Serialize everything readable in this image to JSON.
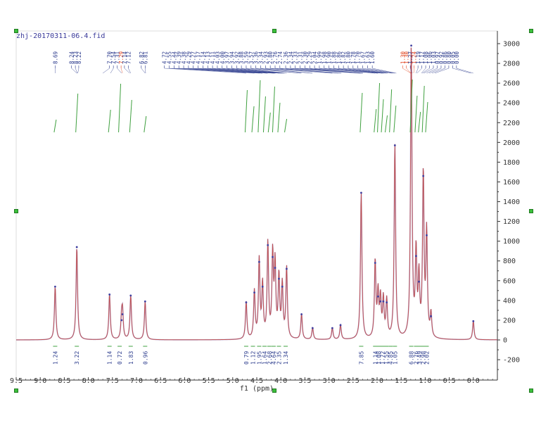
{
  "window": {
    "title": "zhj-20170311-06.4.fid"
  },
  "colors": {
    "trace": "#c05050",
    "grid_frame": "#dddddd",
    "peak_label": "#2b3a8c",
    "solvent_label": "#e0401a",
    "integral": "#3fa03f",
    "integral_label": "#2f3f8f",
    "handle": "#3cbf3c"
  },
  "chart_data": {
    "type": "line",
    "title": "zhj-20170311-06.4.fid",
    "xlabel": "f1 (ppm)",
    "ylabel": "",
    "x_reversed": true,
    "xlim": [
      9.5,
      -0.5
    ],
    "ylim": [
      -300,
      3100
    ],
    "x_ticks": [
      "9.5",
      "9.0",
      "8.5",
      "8.0",
      "7.5",
      "7.0",
      "6.5",
      "6.0",
      "5.5",
      "5.0",
      "4.5",
      "4.0",
      "3.5",
      "3.0",
      "2.5",
      "2.0",
      "1.5",
      "1.0",
      "0.5",
      "0.0"
    ],
    "y_ticks": [
      "3000",
      "2800",
      "2600",
      "2400",
      "2200",
      "2000",
      "1800",
      "1600",
      "1400",
      "1200",
      "1000",
      "800",
      "600",
      "400",
      "200",
      "0",
      "-200"
    ],
    "peaks": [
      {
        "x": 8.69,
        "y": 540
      },
      {
        "x": 8.24,
        "y": 940
      },
      {
        "x": 7.56,
        "y": 460
      },
      {
        "x": 7.31,
        "y": 200
      },
      {
        "x": 7.29,
        "y": 260
      },
      {
        "x": 7.12,
        "y": 450
      },
      {
        "x": 6.82,
        "y": 390
      },
      {
        "x": 4.72,
        "y": 380
      },
      {
        "x": 4.55,
        "y": 480
      },
      {
        "x": 4.45,
        "y": 790
      },
      {
        "x": 4.38,
        "y": 540
      },
      {
        "x": 4.27,
        "y": 960
      },
      {
        "x": 4.17,
        "y": 840
      },
      {
        "x": 4.12,
        "y": 730
      },
      {
        "x": 4.04,
        "y": 620
      },
      {
        "x": 3.97,
        "y": 540
      },
      {
        "x": 3.88,
        "y": 720
      },
      {
        "x": 3.57,
        "y": 260
      },
      {
        "x": 3.34,
        "y": 120
      },
      {
        "x": 2.93,
        "y": 120
      },
      {
        "x": 2.76,
        "y": 150
      },
      {
        "x": 2.33,
        "y": 1490
      },
      {
        "x": 2.04,
        "y": 780
      },
      {
        "x": 1.98,
        "y": 440
      },
      {
        "x": 1.93,
        "y": 390
      },
      {
        "x": 1.87,
        "y": 390
      },
      {
        "x": 1.8,
        "y": 380
      },
      {
        "x": 1.63,
        "y": 1970
      },
      {
        "x": 1.29,
        "y": 2980
      },
      {
        "x": 1.19,
        "y": 850
      },
      {
        "x": 1.13,
        "y": 590
      },
      {
        "x": 1.04,
        "y": 1660
      },
      {
        "x": 0.97,
        "y": 1060
      },
      {
        "x": 0.88,
        "y": 240
      },
      {
        "x": 0.0,
        "y": 190
      }
    ],
    "peak_labels": [
      {
        "text": "8.69",
        "x": 8.69,
        "solvent": false
      },
      {
        "text": "8.24",
        "x": 8.35,
        "solvent": false
      },
      {
        "text": "8.23",
        "x": 8.27,
        "solvent": false
      },
      {
        "text": "8.22",
        "x": 8.2,
        "solvent": false
      },
      {
        "text": "7.70",
        "x": 7.56,
        "solvent": false
      },
      {
        "text": "7.54",
        "x": 7.48,
        "solvent": false
      },
      {
        "text": "7.31",
        "x": 7.4,
        "solvent": false
      },
      {
        "text": "7.29",
        "x": 7.32,
        "solvent": true
      },
      {
        "text": "7.14",
        "x": 7.25,
        "solvent": false
      },
      {
        "text": "7.12",
        "x": 7.17,
        "solvent": false
      },
      {
        "text": "6.82",
        "x": 6.9,
        "solvent": false
      },
      {
        "text": "6.81",
        "x": 6.82,
        "solvent": false
      },
      {
        "text": "4.72",
        "x": 6.42,
        "solvent": false
      },
      {
        "text": "4.55",
        "x": 6.32,
        "solvent": false
      },
      {
        "text": "4.44",
        "x": 6.22,
        "solvent": false
      },
      {
        "text": "4.39",
        "x": 6.12,
        "solvent": false
      },
      {
        "text": "4.38",
        "x": 6.02,
        "solvent": false
      },
      {
        "text": "4.29",
        "x": 5.92,
        "solvent": false
      },
      {
        "text": "4.27",
        "x": 5.82,
        "solvent": false
      },
      {
        "text": "4.17",
        "x": 5.72,
        "solvent": false
      },
      {
        "text": "4.14",
        "x": 5.62,
        "solvent": false
      },
      {
        "text": "4.13",
        "x": 5.52,
        "solvent": false
      },
      {
        "text": "4.11",
        "x": 5.42,
        "solvent": false
      },
      {
        "text": "4.03",
        "x": 5.32,
        "solvent": false
      },
      {
        "text": "4.00",
        "x": 5.22,
        "solvent": false
      },
      {
        "text": "3.97",
        "x": 5.12,
        "solvent": false
      },
      {
        "text": "3.94",
        "x": 5.02,
        "solvent": false
      },
      {
        "text": "3.92",
        "x": 4.92,
        "solvent": false
      },
      {
        "text": "3.88",
        "x": 4.82,
        "solvent": false
      },
      {
        "text": "3.59",
        "x": 4.72,
        "solvent": false
      },
      {
        "text": "3.57",
        "x": 4.62,
        "solvent": false
      },
      {
        "text": "3.36",
        "x": 4.52,
        "solvent": false
      },
      {
        "text": "3.34",
        "x": 4.42,
        "solvent": false
      },
      {
        "text": "2.93",
        "x": 4.32,
        "solvent": false
      },
      {
        "text": "2.80",
        "x": 4.22,
        "solvent": false
      },
      {
        "text": "2.76",
        "x": 4.12,
        "solvent": false
      },
      {
        "text": "2.74",
        "x": 4.02,
        "solvent": false
      },
      {
        "text": "2.36",
        "x": 3.9,
        "solvent": false
      },
      {
        "text": "2.34",
        "x": 3.8,
        "solvent": false
      },
      {
        "text": "2.33",
        "x": 3.7,
        "solvent": false
      },
      {
        "text": "2.31",
        "x": 3.6,
        "solvent": false
      },
      {
        "text": "2.30",
        "x": 3.5,
        "solvent": false
      },
      {
        "text": "2.29",
        "x": 3.4,
        "solvent": false
      },
      {
        "text": "2.04",
        "x": 3.3,
        "solvent": false
      },
      {
        "text": "1.99",
        "x": 3.2,
        "solvent": false
      },
      {
        "text": "1.98",
        "x": 3.1,
        "solvent": false
      },
      {
        "text": "1.90",
        "x": 3.0,
        "solvent": false
      },
      {
        "text": "1.88",
        "x": 2.9,
        "solvent": false
      },
      {
        "text": "1.86",
        "x": 2.8,
        "solvent": false
      },
      {
        "text": "1.82",
        "x": 2.7,
        "solvent": false
      },
      {
        "text": "1.80",
        "x": 2.6,
        "solvent": false
      },
      {
        "text": "1.78",
        "x": 2.5,
        "solvent": false
      },
      {
        "text": "1.70",
        "x": 2.4,
        "solvent": false
      },
      {
        "text": "1.67",
        "x": 2.3,
        "solvent": false
      },
      {
        "text": "1.63",
        "x": 2.2,
        "solvent": false
      },
      {
        "text": "1.60",
        "x": 2.1,
        "solvent": false
      },
      {
        "text": "1.30",
        "x": 1.47,
        "solvent": true
      },
      {
        "text": "1.30",
        "x": 1.39,
        "solvent": true
      },
      {
        "text": "1.27",
        "x": 1.31,
        "solvent": false
      },
      {
        "text": "1.24",
        "x": 1.23,
        "solvent": true
      },
      {
        "text": "1.19",
        "x": 1.15,
        "solvent": false
      },
      {
        "text": "1.17",
        "x": 1.07,
        "solvent": false
      },
      {
        "text": "1.08",
        "x": 0.99,
        "solvent": false
      },
      {
        "text": "1.06",
        "x": 0.91,
        "solvent": false
      },
      {
        "text": "1.03",
        "x": 0.83,
        "solvent": false
      },
      {
        "text": "0.97",
        "x": 0.75,
        "solvent": false
      },
      {
        "text": "0.92",
        "x": 0.67,
        "solvent": false
      },
      {
        "text": "0.86",
        "x": 0.59,
        "solvent": false
      },
      {
        "text": "0.80",
        "x": 0.51,
        "solvent": false
      },
      {
        "text": "0.05",
        "x": 0.43,
        "solvent": false
      },
      {
        "text": "0.00",
        "x": 0.35,
        "solvent": false
      }
    ],
    "integrals": [
      {
        "label": "1.24",
        "x": 8.69
      },
      {
        "label": "3.22",
        "x": 8.24
      },
      {
        "label": "1.14",
        "x": 7.56
      },
      {
        "label": "0.72",
        "x": 7.35
      },
      {
        "label": "1.83",
        "x": 7.12
      },
      {
        "label": "0.96",
        "x": 6.82
      },
      {
        "label": "0.79",
        "x": 4.72
      },
      {
        "label": "1.12",
        "x": 4.58
      },
      {
        "label": "1.95",
        "x": 4.45
      },
      {
        "label": "1.64",
        "x": 4.34
      },
      {
        "label": "2.68",
        "x": 4.24
      },
      {
        "label": "4.64",
        "x": 4.15
      },
      {
        "label": "2.35",
        "x": 4.04
      },
      {
        "label": "1.34",
        "x": 3.9
      },
      {
        "label": "7.85",
        "x": 2.33
      },
      {
        "label": "1.14",
        "x": 2.04
      },
      {
        "label": "1.08",
        "x": 1.97
      },
      {
        "label": "1.72",
        "x": 1.89
      },
      {
        "label": "1.55",
        "x": 1.81
      },
      {
        "label": "4.85",
        "x": 1.72
      },
      {
        "label": "1.05",
        "x": 1.63
      },
      {
        "label": "6.88",
        "x": 1.29
      },
      {
        "label": "2.76",
        "x": 1.19
      },
      {
        "label": "3.49",
        "x": 1.12
      },
      {
        "label": "2.98",
        "x": 1.04
      },
      {
        "label": "2.02",
        "x": 0.97
      }
    ]
  }
}
